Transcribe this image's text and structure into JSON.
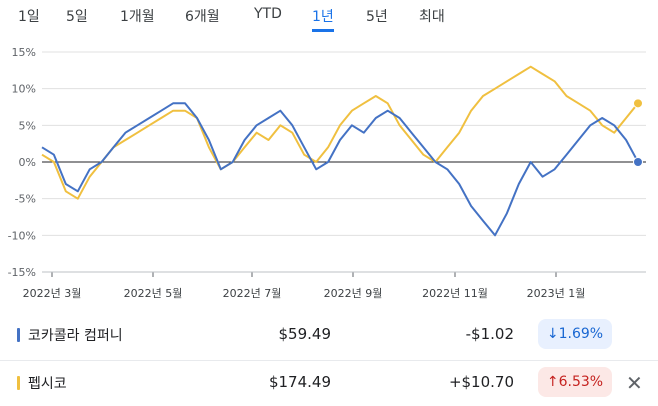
{
  "tabs": [
    {
      "label": "1일"
    },
    {
      "label": "5일"
    },
    {
      "label": "1개월"
    },
    {
      "label": "6개월"
    },
    {
      "label": "YTD"
    },
    {
      "label": "1년",
      "active": true
    },
    {
      "label": "5년"
    },
    {
      "label": "최대"
    }
  ],
  "legend": [
    {
      "name": "코카콜라 컴퍼니",
      "price": "$59.49",
      "change": "-$1.02",
      "change_pct": "↓1.69%",
      "direction": "down",
      "color": "#4472c4"
    },
    {
      "name": "펩시코",
      "price": "$174.49",
      "change": "+$10.70",
      "change_pct": "↑6.53%",
      "direction": "up",
      "color": "#f0c040"
    }
  ],
  "close_icon": "close-icon",
  "chart_data": {
    "type": "line",
    "title": "",
    "xlabel": "",
    "ylabel": "",
    "ylim": [
      -15,
      15
    ],
    "yticks": [
      "15%",
      "10%",
      "5%",
      "0%",
      "-5%",
      "-10%",
      "-15%"
    ],
    "xticks": [
      "2022년 3월",
      "2022년 5월",
      "2022년 7월",
      "2022년 9월",
      "2022년 11월",
      "2023년 1월"
    ],
    "grid": true,
    "series": [
      {
        "name": "코카콜라 컴퍼니",
        "color": "#4472c4",
        "x": [
          0,
          1,
          2,
          3,
          4,
          5,
          6,
          7,
          8,
          9,
          10,
          11,
          12,
          13,
          14,
          15,
          16,
          17,
          18,
          19,
          20,
          21,
          22,
          23,
          24,
          25,
          26,
          27,
          28,
          29,
          30,
          31,
          32,
          33,
          34,
          35,
          36,
          37,
          38,
          39,
          40,
          41,
          42,
          43,
          44,
          45,
          46,
          47,
          48,
          49,
          50
        ],
        "values": [
          2,
          1,
          -3,
          -4,
          -1,
          0,
          2,
          4,
          5,
          6,
          7,
          8,
          8,
          6,
          3,
          -1,
          0,
          3,
          5,
          6,
          7,
          5,
          2,
          -1,
          0,
          3,
          5,
          4,
          6,
          7,
          6,
          4,
          2,
          0,
          -1,
          -3,
          -6,
          -8,
          -10,
          -7,
          -3,
          0,
          -2,
          -1,
          1,
          3,
          5,
          6,
          5,
          3,
          0
        ]
      },
      {
        "name": "펩시코",
        "color": "#f0c040",
        "x": [
          0,
          1,
          2,
          3,
          4,
          5,
          6,
          7,
          8,
          9,
          10,
          11,
          12,
          13,
          14,
          15,
          16,
          17,
          18,
          19,
          20,
          21,
          22,
          23,
          24,
          25,
          26,
          27,
          28,
          29,
          30,
          31,
          32,
          33,
          34,
          35,
          36,
          37,
          38,
          39,
          40,
          41,
          42,
          43,
          44,
          45,
          46,
          47,
          48,
          49,
          50
        ],
        "values": [
          1,
          0,
          -4,
          -5,
          -2,
          0,
          2,
          3,
          4,
          5,
          6,
          7,
          7,
          6,
          2,
          -1,
          0,
          2,
          4,
          3,
          5,
          4,
          1,
          0,
          2,
          5,
          7,
          8,
          9,
          8,
          5,
          3,
          1,
          0,
          2,
          4,
          7,
          9,
          10,
          11,
          12,
          13,
          12,
          11,
          9,
          8,
          7,
          5,
          4,
          6,
          8
        ]
      }
    ]
  }
}
